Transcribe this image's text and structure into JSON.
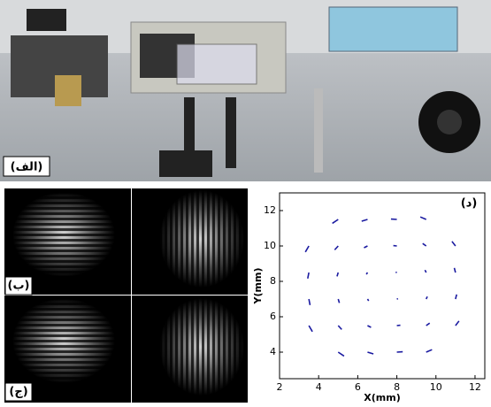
{
  "panels": {
    "a": "(الف)",
    "b": "(ب)",
    "c": "(ج)",
    "d": "(د)"
  },
  "chart_data": {
    "type": "quiver",
    "xlabel": "X(mm)",
    "ylabel": "Y(mm)",
    "color": "#1a1aa0",
    "xlim": [
      2,
      12.5
    ],
    "ylim": [
      2.5,
      13
    ],
    "xticks": [
      2,
      4,
      6,
      8,
      10,
      12
    ],
    "yticks": [
      4,
      6,
      8,
      10,
      12
    ],
    "x": [
      5,
      6.5,
      8,
      9.5,
      3.5,
      5,
      6.5,
      8,
      9.5,
      11,
      3.5,
      5,
      6.5,
      8,
      9.5,
      11,
      3.5,
      5,
      6.5,
      8,
      9.5,
      11,
      3.5,
      5,
      6.5,
      8,
      9.5,
      11,
      5,
      6.5,
      8,
      9.5
    ],
    "y": [
      4,
      4,
      4,
      4,
      5.5,
      5.5,
      5.5,
      5.5,
      5.5,
      5.5,
      7,
      7,
      7,
      7,
      7,
      7,
      8.5,
      8.5,
      8.5,
      8.5,
      8.5,
      8.5,
      10,
      10,
      10,
      10,
      10,
      10,
      11.5,
      11.5,
      11.5,
      11.5
    ],
    "u": [
      0.3,
      0.3,
      0.3,
      0.3,
      0.18,
      0.18,
      0.18,
      0.18,
      0.18,
      0.18,
      0.06,
      0.06,
      0.06,
      0.06,
      0.06,
      0.06,
      -0.06,
      -0.06,
      -0.06,
      -0.06,
      -0.06,
      -0.06,
      -0.18,
      -0.18,
      -0.18,
      -0.18,
      -0.18,
      -0.18,
      -0.3,
      -0.3,
      -0.3,
      -0.3
    ],
    "v": [
      -0.22,
      -0.1,
      0.02,
      0.14,
      -0.34,
      -0.22,
      -0.1,
      0.02,
      0.14,
      0.26,
      -0.34,
      -0.22,
      -0.1,
      0.02,
      0.14,
      0.26,
      -0.34,
      -0.22,
      -0.1,
      0.02,
      0.14,
      0.26,
      -0.34,
      -0.22,
      -0.1,
      0.02,
      0.14,
      0.26,
      -0.22,
      -0.1,
      0.02,
      0.14
    ]
  }
}
